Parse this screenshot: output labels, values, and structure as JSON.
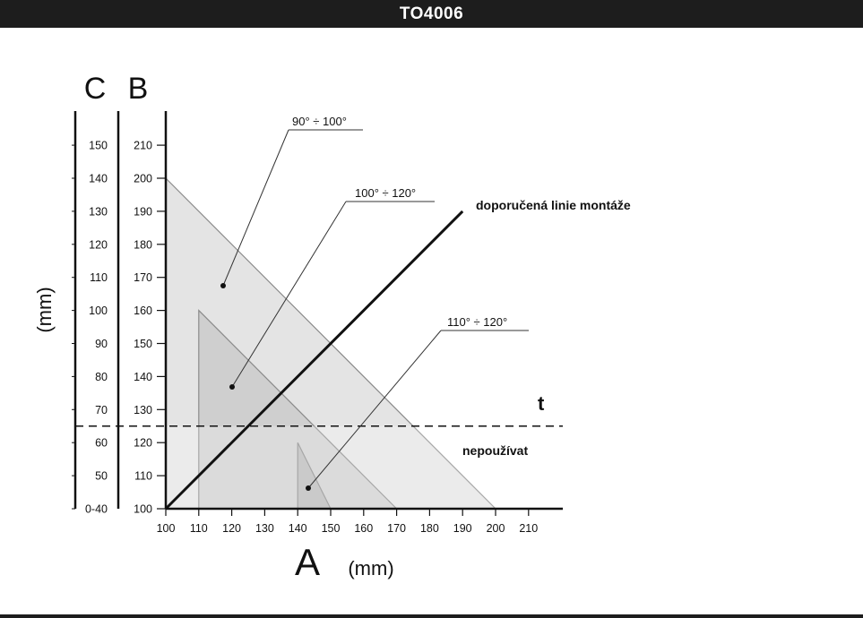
{
  "header": {
    "title": "TO4006"
  },
  "axes": {
    "c_axis_letter": "C",
    "b_axis_letter": "B",
    "a_axis_letter": "A",
    "a_axis_unit": "(mm)",
    "vertical_unit": "(mm)",
    "c_ticks": [
      "0-40",
      "50",
      "60",
      "70",
      "80",
      "90",
      "100",
      "110",
      "120",
      "130",
      "140",
      "150"
    ],
    "b_ticks": [
      "100",
      "110",
      "120",
      "130",
      "140",
      "150",
      "160",
      "170",
      "180",
      "190",
      "200",
      "210"
    ],
    "a_ticks": [
      "100",
      "110",
      "120",
      "130",
      "140",
      "150",
      "160",
      "170",
      "180",
      "190",
      "200",
      "210"
    ]
  },
  "labels": {
    "range_90_100": "90° ÷ 100°",
    "range_100_120": "100° ÷ 120°",
    "range_110_120": "110° ÷ 120°",
    "recommended_line": "doporučená linie montáže",
    "threshold_t": "t",
    "do_not_use": "nepoužívat"
  },
  "chart_data": {
    "type": "area",
    "x_axis": {
      "label": "A",
      "unit": "(mm)",
      "range": [
        100,
        210
      ]
    },
    "y_axis_b": {
      "label": "B",
      "range": [
        100,
        210
      ]
    },
    "y_axis_c": {
      "label": "C",
      "ticks": [
        "0-40",
        "50",
        "60",
        "70",
        "80",
        "90",
        "100",
        "110",
        "120",
        "130",
        "140",
        "150"
      ]
    },
    "regions": [
      {
        "name": "90° ÷ 100°",
        "points": [
          [
            100,
            200
          ],
          [
            200,
            100
          ],
          [
            100,
            100
          ]
        ],
        "color": "#e4e4e4"
      },
      {
        "name": "100° ÷ 120°",
        "points": [
          [
            110,
            160
          ],
          [
            170,
            100
          ],
          [
            110,
            100
          ]
        ],
        "color": "#cfcfcf"
      },
      {
        "name": "110° ÷ 120°",
        "points": [
          [
            140,
            120
          ],
          [
            150,
            100
          ],
          [
            140,
            100
          ]
        ],
        "color": "#b9b9b9"
      }
    ],
    "recommended_line": {
      "name": "doporučená linie montáže",
      "points": [
        [
          100,
          100
        ],
        [
          190,
          190
        ]
      ]
    },
    "threshold": {
      "name": "t",
      "b_value": 125
    },
    "colors": {
      "header": "#1d1d1d",
      "line": "#111111"
    }
  }
}
